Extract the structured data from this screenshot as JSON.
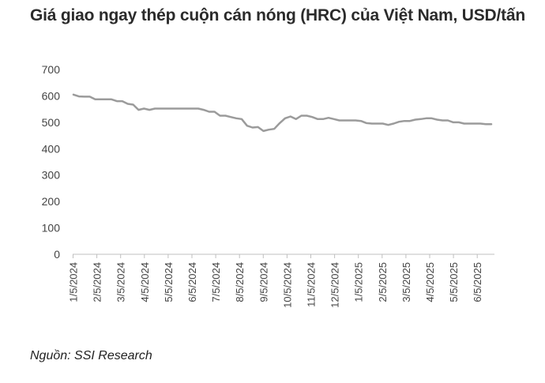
{
  "title": "Giá giao ngay thép cuộn cán nóng (HRC) của Việt Nam, USD/tấn",
  "source": "Nguồn: SSI Research",
  "colors": {
    "line": "#9b9b9b",
    "axis": "#bfbfbf",
    "text": "#444444"
  },
  "chart_data": {
    "type": "line",
    "title": "Giá giao ngay thép cuộn cán nóng (HRC) của Việt Nam, USD/tấn",
    "xlabel": "",
    "ylabel": "",
    "ylim": [
      0,
      700
    ],
    "yticks": [
      0,
      100,
      200,
      300,
      400,
      500,
      600,
      700
    ],
    "xtick_labels": [
      "1/5/2024",
      "2/5/2024",
      "3/5/2024",
      "4/5/2024",
      "5/5/2024",
      "6/5/2024",
      "7/5/2024",
      "8/5/2024",
      "9/5/2024",
      "10/5/2024",
      "11/5/2024",
      "12/5/2024",
      "1/5/2025",
      "2/5/2025",
      "3/5/2025",
      "4/5/2025",
      "5/5/2025",
      "6/5/2025"
    ],
    "grid": false,
    "legend": "none",
    "series": [
      {
        "values": [
          605,
          598,
          597,
          597,
          587,
          587,
          587,
          587,
          580,
          580,
          570,
          567,
          547,
          552,
          547,
          552,
          552,
          552,
          552,
          552,
          552,
          552,
          552,
          552,
          547,
          540,
          540,
          525,
          525,
          520,
          515,
          512,
          487,
          480,
          482,
          467,
          472,
          475,
          497,
          515,
          522,
          512,
          525,
          525,
          520,
          512,
          512,
          517,
          512,
          507,
          507,
          507,
          507,
          505,
          497,
          495,
          495,
          495,
          490,
          495,
          502,
          505,
          505,
          510,
          512,
          515,
          515,
          510,
          507,
          507,
          500,
          500,
          495,
          495,
          495,
          495,
          493,
          493
        ]
      }
    ]
  }
}
